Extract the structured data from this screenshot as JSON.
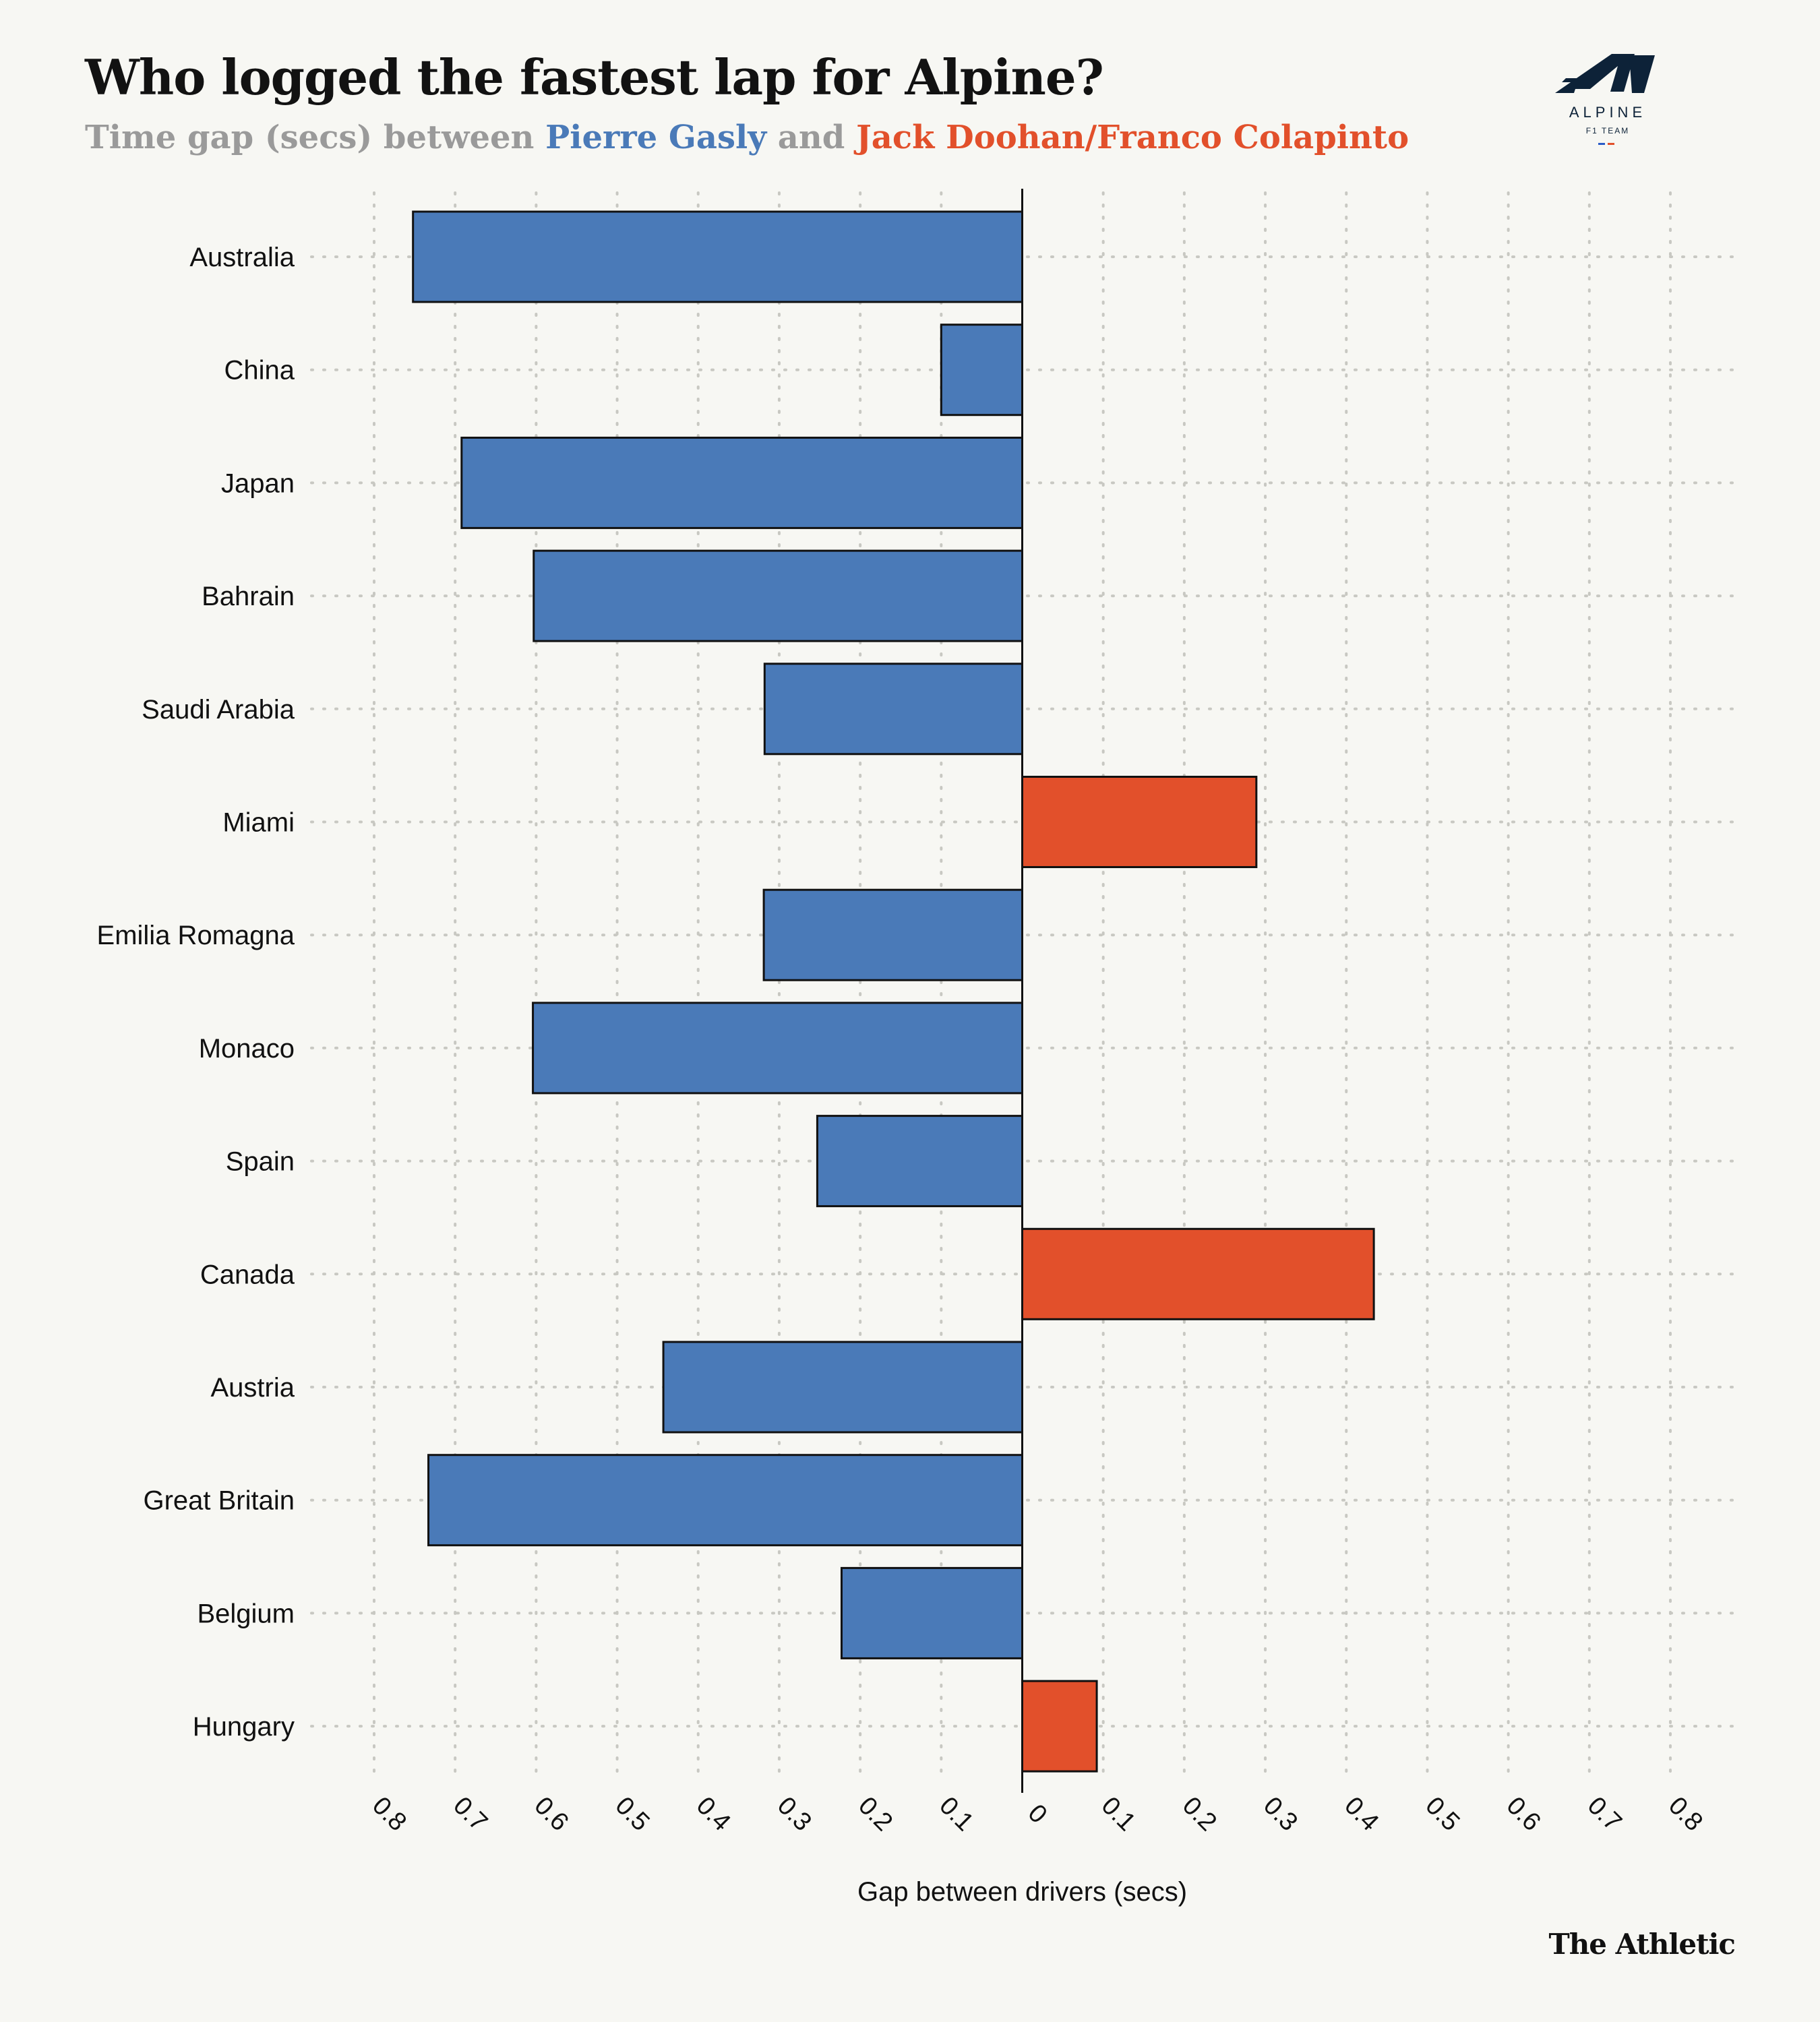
{
  "header": {
    "title": "Who logged the fastest lap for Alpine?",
    "subtitle_prefix": "Time gap (secs) between ",
    "subtitle_blue": "Pierre Gasly",
    "subtitle_mid": " and ",
    "subtitle_red": "Jack Doohan/Franco Colapinto"
  },
  "logo": {
    "icon": "alpine-a-logo",
    "wordmark": "ALPINE",
    "tagline": "F1 TEAM"
  },
  "credit": "The Athletic",
  "colors": {
    "gasly": "#4a7ab8",
    "doohan_colapinto": "#e2502b",
    "background": "#f7f7f3",
    "outline": "#111111",
    "grid": "#c8c8c2"
  },
  "chart_data": {
    "type": "bar",
    "orientation": "horizontal",
    "xlabel": "Gap between drivers (secs)",
    "ylabel": "",
    "xlim": [
      -0.8,
      0.8
    ],
    "tick_values": [
      -0.8,
      -0.7,
      -0.6,
      -0.5,
      -0.4,
      -0.3,
      -0.2,
      -0.1,
      0,
      0.1,
      0.2,
      0.3,
      0.4,
      0.5,
      0.6,
      0.7,
      0.8
    ],
    "tick_labels": [
      "0.8",
      "0.7",
      "0.6",
      "0.5",
      "0.4",
      "0.3",
      "0.2",
      "0.1",
      "0",
      "0.1",
      "0.2",
      "0.3",
      "0.4",
      "0.5",
      "0.6",
      "0.7",
      "0.8"
    ],
    "grid": true,
    "categories": [
      "Australia",
      "China",
      "Japan",
      "Bahrain",
      "Saudi Arabia",
      "Miami",
      "Emilia Romagna",
      "Monaco",
      "Spain",
      "Canada",
      "Austria",
      "Great Britain",
      "Belgium",
      "Hungary"
    ],
    "values": [
      -0.752,
      -0.1,
      -0.692,
      -0.603,
      -0.318,
      0.289,
      -0.319,
      -0.604,
      -0.253,
      0.434,
      -0.443,
      -0.733,
      -0.223,
      0.092
    ],
    "series": [
      {
        "name": "Pierre Gasly",
        "color": "#4a7ab8",
        "side": "negative"
      },
      {
        "name": "Jack Doohan/Franco Colapinto",
        "color": "#e2502b",
        "side": "positive"
      }
    ]
  }
}
